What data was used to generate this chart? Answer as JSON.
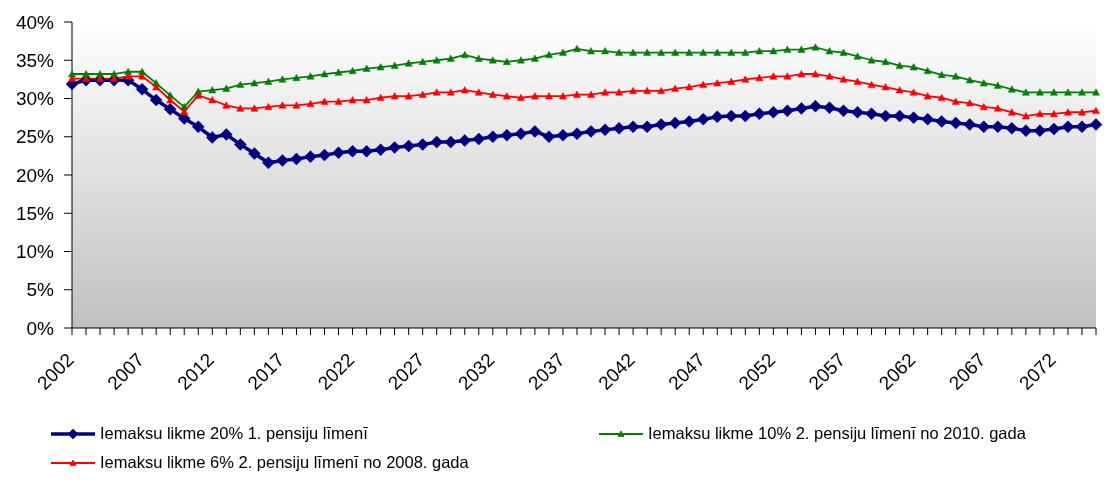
{
  "chart_data": {
    "type": "line",
    "categories": [
      "2002",
      null,
      null,
      null,
      null,
      "2007",
      null,
      null,
      null,
      null,
      "2012",
      null,
      null,
      null,
      null,
      "2017",
      null,
      null,
      null,
      null,
      "2022",
      null,
      null,
      null,
      null,
      "2027",
      null,
      null,
      null,
      null,
      "2032",
      null,
      null,
      null,
      null,
      "2037",
      null,
      null,
      null,
      null,
      "2042",
      null,
      null,
      null,
      null,
      "2047",
      null,
      null,
      null,
      null,
      "2052",
      null,
      null,
      null,
      null,
      "2057",
      null,
      null,
      null,
      null,
      "2062",
      null,
      null,
      null,
      null,
      "2067",
      null,
      null,
      null,
      null,
      "2072",
      null,
      null,
      null
    ],
    "series": [
      {
        "name": "Iemaksu likme 20% 1. pensiju līmenī",
        "color": "#000080",
        "marker": "diamond",
        "values": [
          31.9,
          32.4,
          32.4,
          32.4,
          32.4,
          31.2,
          29.8,
          28.6,
          27.4,
          26.3,
          24.9,
          25.3,
          24.0,
          22.8,
          21.6,
          21.9,
          22.1,
          22.4,
          22.6,
          22.9,
          23.1,
          23.1,
          23.3,
          23.6,
          23.8,
          24.0,
          24.3,
          24.3,
          24.5,
          24.7,
          25.0,
          25.2,
          25.4,
          25.7,
          25.0,
          25.2,
          25.4,
          25.7,
          25.9,
          26.1,
          26.3,
          26.3,
          26.6,
          26.8,
          27.0,
          27.3,
          27.6,
          27.7,
          27.7,
          28.0,
          28.2,
          28.4,
          28.7,
          29.0,
          28.8,
          28.4,
          28.2,
          28.0,
          27.7,
          27.7,
          27.5,
          27.3,
          27.0,
          26.8,
          26.6,
          26.3,
          26.3,
          26.1,
          25.8,
          25.8,
          26.0,
          26.3,
          26.3,
          26.6
        ]
      },
      {
        "name": "Iemaksu likme 10% 2. pensiju līmenī no 2010. gada",
        "color": "#008000",
        "marker": "triangle",
        "values": [
          33.2,
          33.2,
          33.2,
          33.2,
          33.5,
          33.5,
          32.0,
          30.4,
          28.9,
          30.9,
          31.1,
          31.3,
          31.8,
          32.0,
          32.2,
          32.5,
          32.7,
          32.9,
          33.2,
          33.4,
          33.6,
          33.9,
          34.1,
          34.3,
          34.6,
          34.8,
          35.0,
          35.2,
          35.7,
          35.2,
          35.0,
          34.8,
          35.0,
          35.2,
          35.7,
          36.0,
          36.5,
          36.2,
          36.2,
          36.0,
          36.0,
          36.0,
          36.0,
          36.0,
          36.0,
          36.0,
          36.0,
          36.0,
          36.0,
          36.2,
          36.2,
          36.4,
          36.4,
          36.7,
          36.2,
          36.0,
          35.5,
          35.0,
          34.8,
          34.3,
          34.1,
          33.6,
          33.1,
          32.9,
          32.4,
          32.0,
          31.7,
          31.2,
          30.8,
          30.8,
          30.8,
          30.8,
          30.8,
          30.8
        ]
      },
      {
        "name": "Iemaksu likme 6% 2. pensiju līmenī no 2008. gada",
        "color": "#ff0000",
        "marker": "triangle",
        "values": [
          32.6,
          32.6,
          32.6,
          32.6,
          32.9,
          32.9,
          31.5,
          29.8,
          28.3,
          30.4,
          29.8,
          29.1,
          28.7,
          28.7,
          28.9,
          29.1,
          29.1,
          29.3,
          29.6,
          29.6,
          29.8,
          29.8,
          30.1,
          30.3,
          30.3,
          30.5,
          30.8,
          30.8,
          31.1,
          30.8,
          30.5,
          30.3,
          30.1,
          30.3,
          30.3,
          30.3,
          30.5,
          30.5,
          30.8,
          30.8,
          31.0,
          31.0,
          31.0,
          31.3,
          31.5,
          31.8,
          32.0,
          32.2,
          32.5,
          32.7,
          32.9,
          32.9,
          33.2,
          33.2,
          32.9,
          32.5,
          32.2,
          31.8,
          31.5,
          31.1,
          30.8,
          30.3,
          30.1,
          29.6,
          29.4,
          28.9,
          28.7,
          28.2,
          27.7,
          28.0,
          28.0,
          28.2,
          28.2,
          28.4
        ]
      }
    ],
    "ylim": [
      0,
      40
    ],
    "yticks": [
      {
        "value": 0,
        "label": "0%"
      },
      {
        "value": 5,
        "label": "5%"
      },
      {
        "value": 10,
        "label": "10%"
      },
      {
        "value": 15,
        "label": "15%"
      },
      {
        "value": 20,
        "label": "20%"
      },
      {
        "value": 25,
        "label": "25%"
      },
      {
        "value": 30,
        "label": "30%"
      },
      {
        "value": 35,
        "label": "35%"
      },
      {
        "value": 40,
        "label": "40%"
      }
    ],
    "legend": "bottom"
  }
}
